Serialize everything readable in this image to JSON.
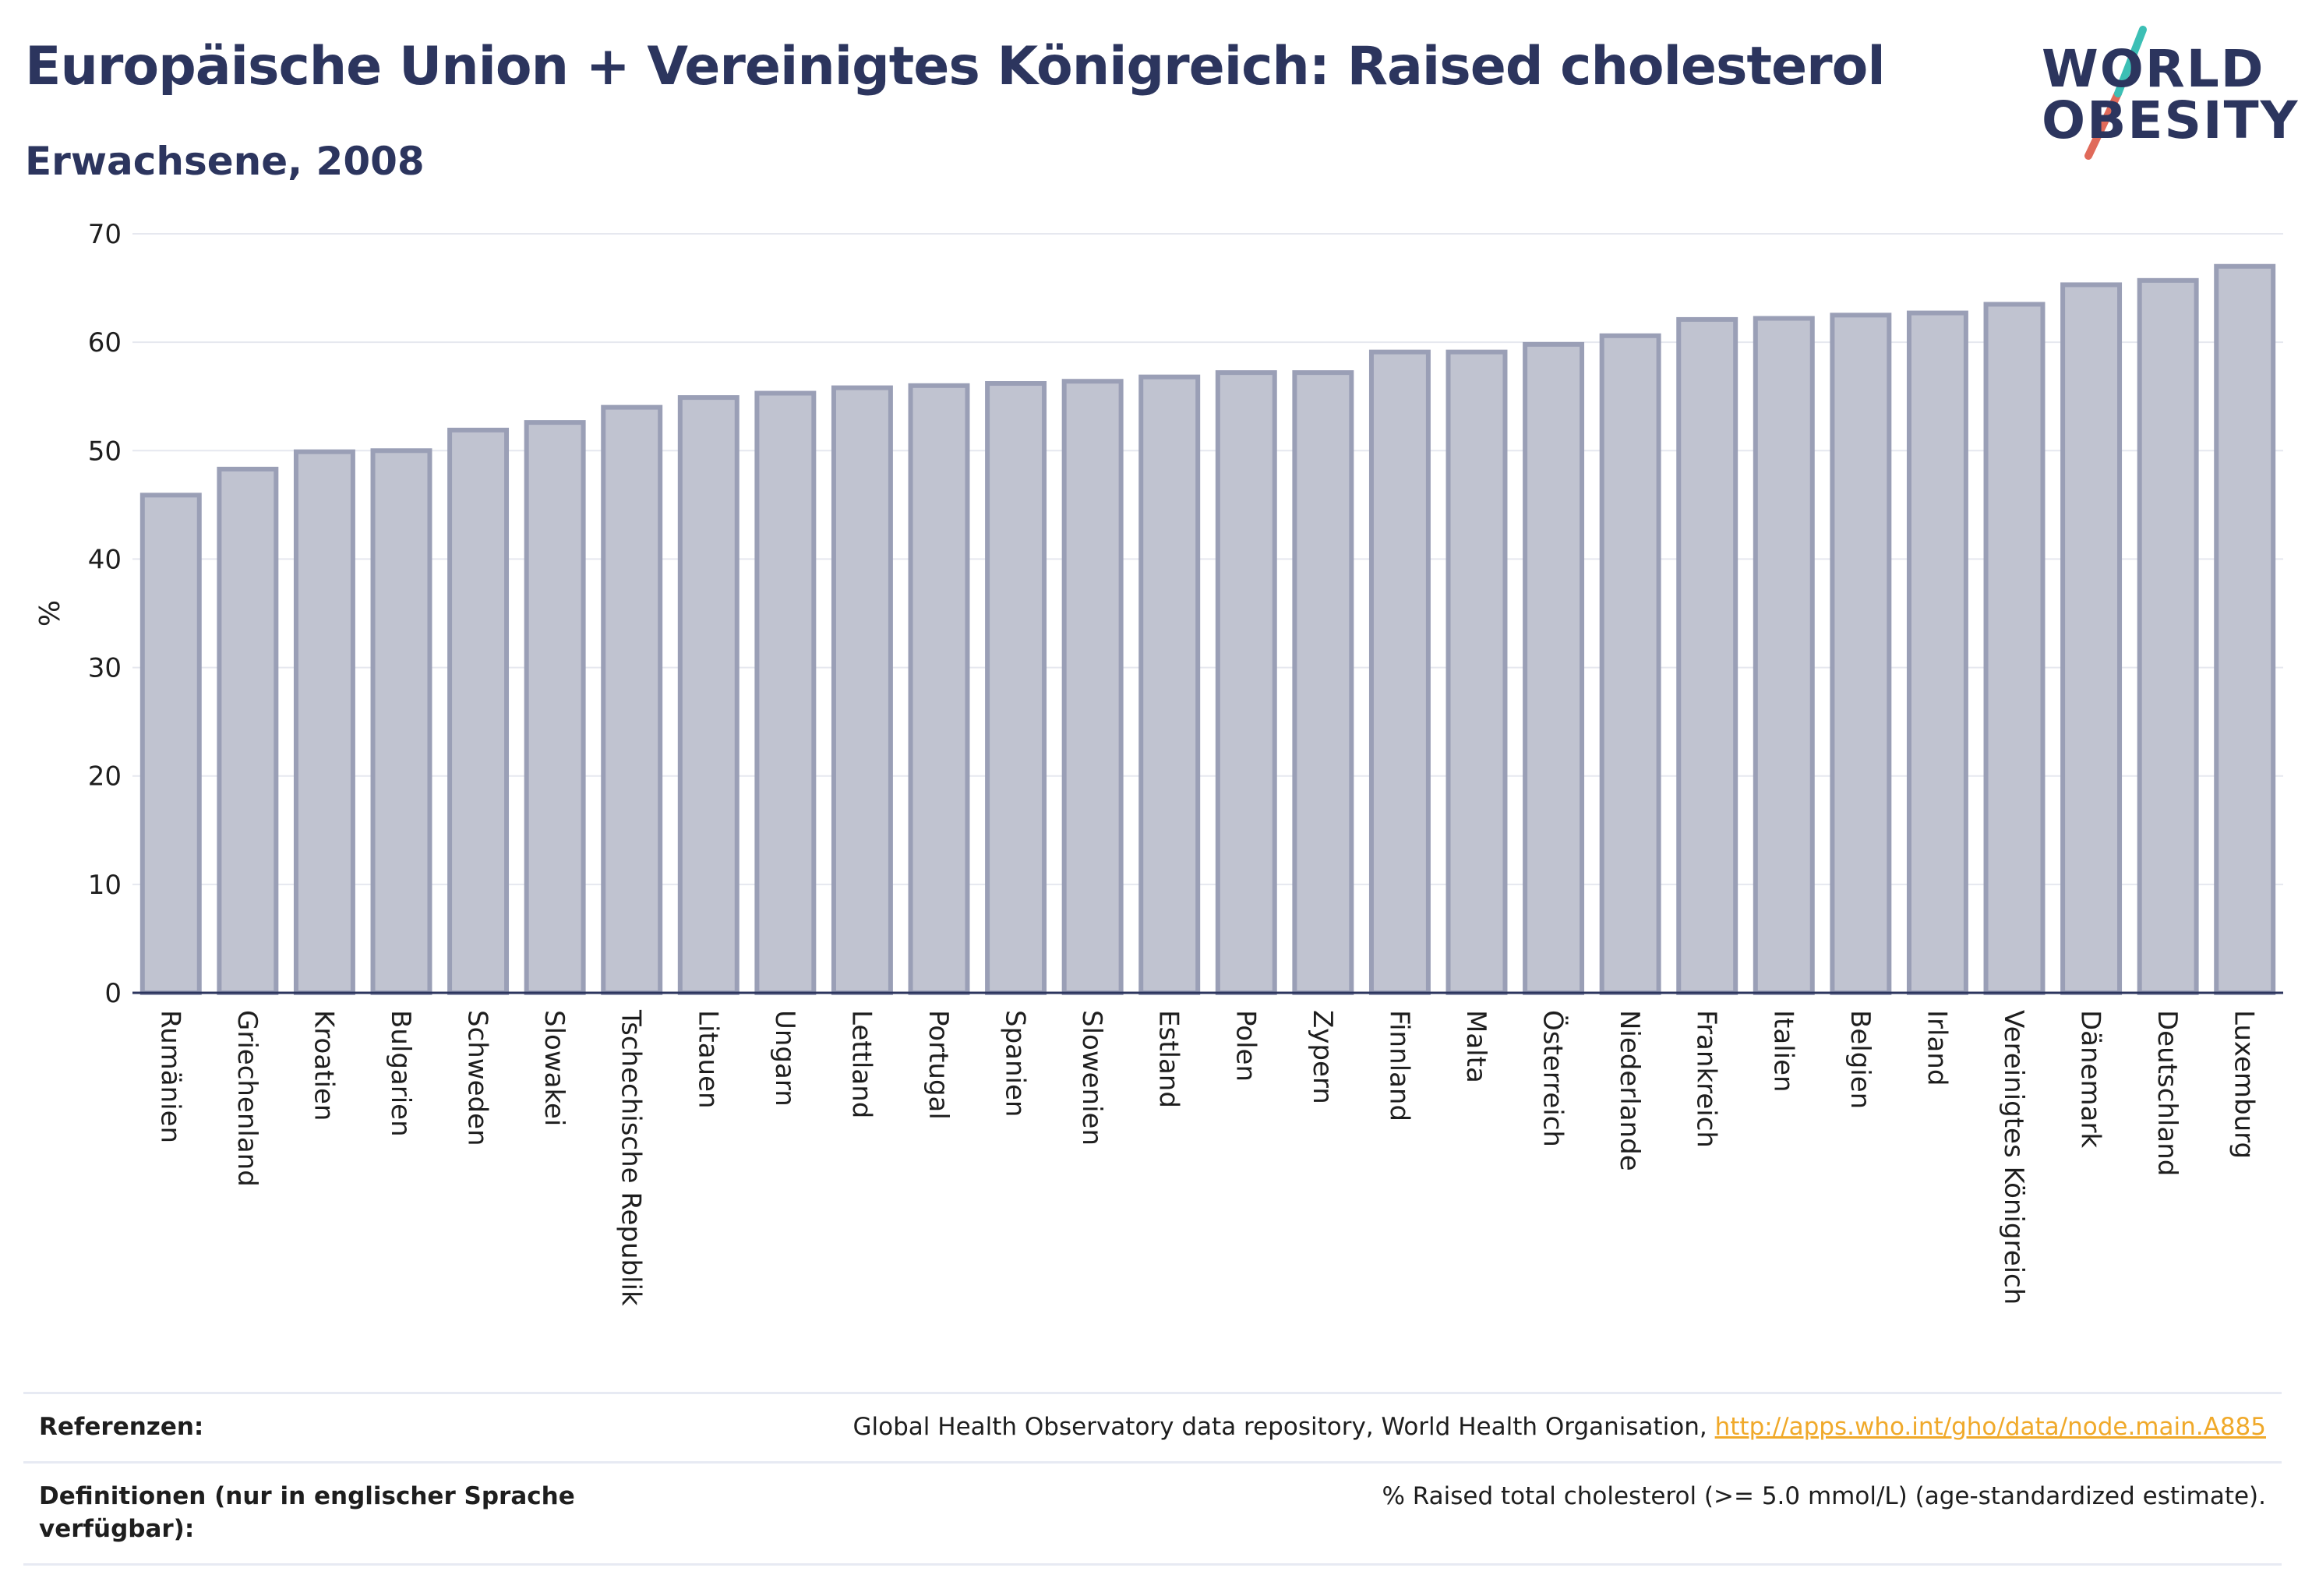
{
  "title": "Europäische Union + Vereinigtes Königreich: Raised cholesterol",
  "subtitle": "Erwachsene, 2008",
  "logo": {
    "line1": "WORLD",
    "line2": "OBESITY",
    "colors": {
      "text": "#2c355e",
      "slash_top": "#3cbfb5",
      "slash_bottom": "#e06a5a"
    }
  },
  "chart_data": {
    "type": "bar",
    "title": "Europäische Union + Vereinigtes Königreich: Raised cholesterol",
    "subtitle": "Erwachsene, 2008",
    "ylabel": "%",
    "xlabel": "",
    "ylim": [
      0,
      70
    ],
    "yticks": [
      0,
      10,
      20,
      30,
      40,
      50,
      60,
      70
    ],
    "grid": true,
    "colors": {
      "bar_fill": "#c0c3d0",
      "bar_stroke": "#9a9fb6",
      "axis": "#2c355e",
      "grid": "#e6e8ef"
    },
    "categories": [
      "Rumänien",
      "Griechenland",
      "Kroatien",
      "Bulgarien",
      "Schweden",
      "Slowakei",
      "Tschechische Republik",
      "Litauen",
      "Ungarn",
      "Lettland",
      "Portugal",
      "Spanien",
      "Slowenien",
      "Estland",
      "Polen",
      "Zypern",
      "Finnland",
      "Malta",
      "Österreich",
      "Niederlande",
      "Frankreich",
      "Italien",
      "Belgien",
      "Irland",
      "Vereinigtes Königreich",
      "Dänemark",
      "Deutschland",
      "Luxemburg"
    ],
    "values": [
      45.9,
      48.3,
      49.9,
      50.0,
      51.9,
      52.6,
      54.0,
      54.9,
      55.3,
      55.8,
      56.0,
      56.2,
      56.4,
      56.8,
      57.2,
      57.2,
      59.1,
      59.1,
      59.8,
      60.6,
      62.1,
      62.2,
      62.5,
      62.7,
      63.5,
      65.3,
      65.7,
      67.0
    ]
  },
  "references": {
    "ref_label": "Referenzen:",
    "ref_text": "Global Health Observatory data repository, World Health Organisation,",
    "ref_link": "http://apps.who.int/gho/data/node.main.A885",
    "def_label": "Definitionen (nur in englischer Sprache verfügbar):",
    "def_text": "% Raised total cholesterol (>= 5.0 mmol/L) (age-standardized estimate)."
  }
}
